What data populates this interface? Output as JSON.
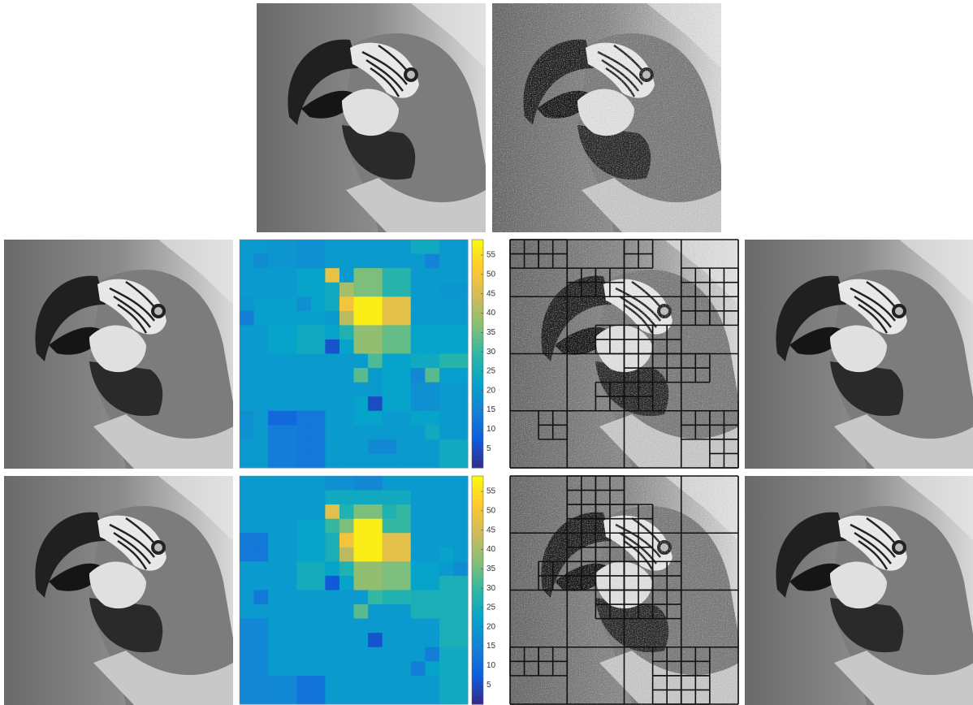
{
  "chart_data": [
    {
      "type": "heatmap",
      "colormap": "parula",
      "zlim": [
        0,
        59
      ],
      "zticks": [
        5,
        10,
        15,
        20,
        25,
        30,
        35,
        40,
        45,
        50,
        55
      ],
      "values": [
        [
          20,
          20,
          19,
          19,
          18,
          18,
          20,
          20,
          20,
          20,
          20,
          20,
          24,
          24,
          20,
          20
        ],
        [
          20,
          17,
          19,
          19,
          18,
          18,
          20,
          20,
          20,
          20,
          20,
          20,
          20,
          15,
          20,
          20
        ],
        [
          20,
          20,
          20,
          20,
          22,
          22,
          48,
          20,
          36,
          36,
          28,
          28,
          20,
          20,
          20,
          20
        ],
        [
          20,
          20,
          20,
          20,
          22,
          22,
          24,
          40,
          36,
          36,
          28,
          28,
          20,
          20,
          19,
          19
        ],
        [
          19,
          21,
          21,
          21,
          18,
          22,
          24,
          50,
          57,
          57,
          47,
          47,
          20,
          20,
          20,
          20
        ],
        [
          14,
          21,
          21,
          21,
          21,
          21,
          20,
          42,
          57,
          57,
          47,
          47,
          20,
          20,
          20,
          20
        ],
        [
          20,
          20,
          22,
          22,
          24,
          24,
          22,
          27,
          38,
          38,
          34,
          34,
          22,
          22,
          22,
          22
        ],
        [
          20,
          20,
          22,
          22,
          24,
          24,
          6,
          22,
          38,
          38,
          34,
          34,
          22,
          22,
          22,
          22
        ],
        [
          20,
          20,
          20,
          20,
          20,
          20,
          20,
          20,
          20,
          32,
          22,
          22,
          24,
          24,
          28,
          28
        ],
        [
          20,
          20,
          20,
          20,
          20,
          20,
          20,
          20,
          33,
          20,
          22,
          22,
          16,
          33,
          21,
          21
        ],
        [
          20,
          20,
          20,
          20,
          20,
          20,
          20,
          20,
          20,
          20,
          22,
          22,
          18,
          18,
          20,
          20
        ],
        [
          20,
          20,
          20,
          20,
          20,
          20,
          20,
          20,
          22,
          5,
          22,
          22,
          18,
          18,
          20,
          20
        ],
        [
          18,
          20,
          10,
          10,
          13,
          13,
          20,
          20,
          22,
          22,
          20,
          20,
          22,
          22,
          20,
          20
        ],
        [
          18,
          20,
          14,
          14,
          13,
          13,
          20,
          20,
          20,
          20,
          20,
          20,
          20,
          24,
          20,
          20
        ],
        [
          20,
          20,
          14,
          14,
          13,
          13,
          20,
          20,
          20,
          16,
          16,
          20,
          20,
          20,
          24,
          24
        ],
        [
          20,
          20,
          14,
          14,
          13,
          13,
          20,
          20,
          20,
          20,
          20,
          20,
          20,
          20,
          24,
          24
        ]
      ]
    },
    {
      "type": "heatmap",
      "colormap": "parula",
      "zlim": [
        0,
        59
      ],
      "zticks": [
        5,
        10,
        15,
        20,
        25,
        30,
        35,
        40,
        45,
        50,
        55
      ],
      "values": [
        [
          20,
          20,
          20,
          20,
          20,
          20,
          18,
          18,
          16,
          16,
          20,
          20,
          20,
          20,
          20,
          20
        ],
        [
          20,
          20,
          20,
          20,
          20,
          20,
          24,
          24,
          24,
          24,
          24,
          24,
          20,
          20,
          20,
          20
        ],
        [
          20,
          20,
          20,
          20,
          20,
          20,
          47,
          27,
          36,
          36,
          27,
          30,
          20,
          20,
          20,
          20
        ],
        [
          20,
          20,
          20,
          20,
          22,
          22,
          30,
          36,
          57,
          57,
          30,
          30,
          20,
          20,
          20,
          20
        ],
        [
          13,
          13,
          20,
          20,
          22,
          22,
          26,
          50,
          57,
          57,
          47,
          47,
          20,
          20,
          20,
          20
        ],
        [
          13,
          13,
          20,
          20,
          22,
          22,
          26,
          42,
          57,
          57,
          47,
          47,
          20,
          20,
          22,
          20
        ],
        [
          20,
          20,
          20,
          20,
          25,
          25,
          22,
          27,
          38,
          38,
          36,
          36,
          22,
          22,
          20,
          17
        ],
        [
          20,
          20,
          20,
          20,
          25,
          25,
          7,
          22,
          38,
          38,
          36,
          36,
          22,
          22,
          26,
          26
        ],
        [
          20,
          13,
          20,
          20,
          20,
          20,
          20,
          20,
          20,
          30,
          27,
          27,
          26,
          26,
          26,
          26
        ],
        [
          20,
          20,
          20,
          20,
          20,
          20,
          20,
          20,
          33,
          20,
          20,
          20,
          26,
          26,
          26,
          26
        ],
        [
          16,
          16,
          20,
          20,
          20,
          20,
          20,
          20,
          20,
          20,
          20,
          20,
          20,
          20,
          26,
          26
        ],
        [
          16,
          16,
          20,
          20,
          20,
          20,
          20,
          20,
          20,
          6,
          20,
          20,
          20,
          20,
          26,
          26
        ],
        [
          16,
          16,
          20,
          20,
          20,
          20,
          20,
          20,
          20,
          20,
          20,
          20,
          20,
          14,
          24,
          24
        ],
        [
          16,
          16,
          20,
          20,
          20,
          20,
          20,
          20,
          20,
          20,
          20,
          20,
          14,
          22,
          24,
          24
        ],
        [
          16,
          16,
          16,
          16,
          12,
          12,
          20,
          20,
          20,
          20,
          20,
          20,
          20,
          20,
          24,
          24
        ],
        [
          16,
          16,
          16,
          16,
          12,
          12,
          20,
          20,
          20,
          20,
          20,
          20,
          20,
          20,
          24,
          24
        ]
      ]
    }
  ]
}
